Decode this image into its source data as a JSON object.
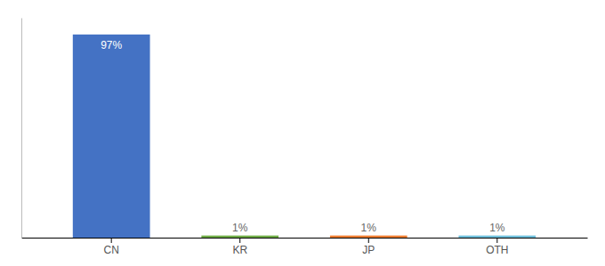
{
  "chart_data": {
    "type": "bar",
    "categories": [
      "CN",
      "KR",
      "JP",
      "OTH"
    ],
    "values": [
      97,
      1,
      1,
      1
    ],
    "value_labels": [
      "97%",
      "1%",
      "1%",
      "1%"
    ],
    "colors": [
      "#4472C4",
      "#70AD47",
      "#ED7D31",
      "#70C0DC"
    ],
    "ylim": [
      0,
      105
    ],
    "data_labels": true,
    "tick_labels": "x",
    "grid": false
  }
}
